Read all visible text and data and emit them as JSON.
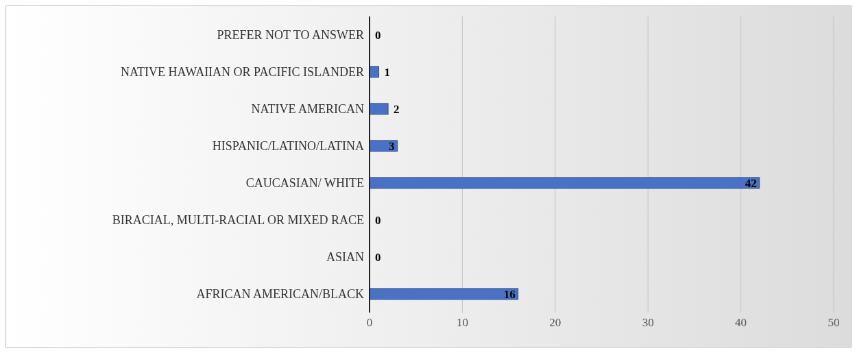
{
  "chart_data": {
    "type": "bar",
    "orientation": "horizontal",
    "categories": [
      "PREFER NOT TO ANSWER",
      "NATIVE HAWAIIAN OR PACIFIC ISLANDER",
      "NATIVE AMERICAN",
      "HISPANIC/LATINO/LATINA",
      "CAUCASIAN/ WHITE",
      "BIRACIAL, MULTI-RACIAL OR MIXED RACE",
      "ASIAN",
      "AFRICAN AMERICAN/BLACK"
    ],
    "values": [
      0,
      1,
      2,
      3,
      42,
      0,
      0,
      16
    ],
    "color": "#4a72c4",
    "xlim": [
      0,
      50
    ],
    "xticks": [
      0,
      10,
      20,
      30,
      40,
      50
    ],
    "grid": "x",
    "data_labels": true
  }
}
